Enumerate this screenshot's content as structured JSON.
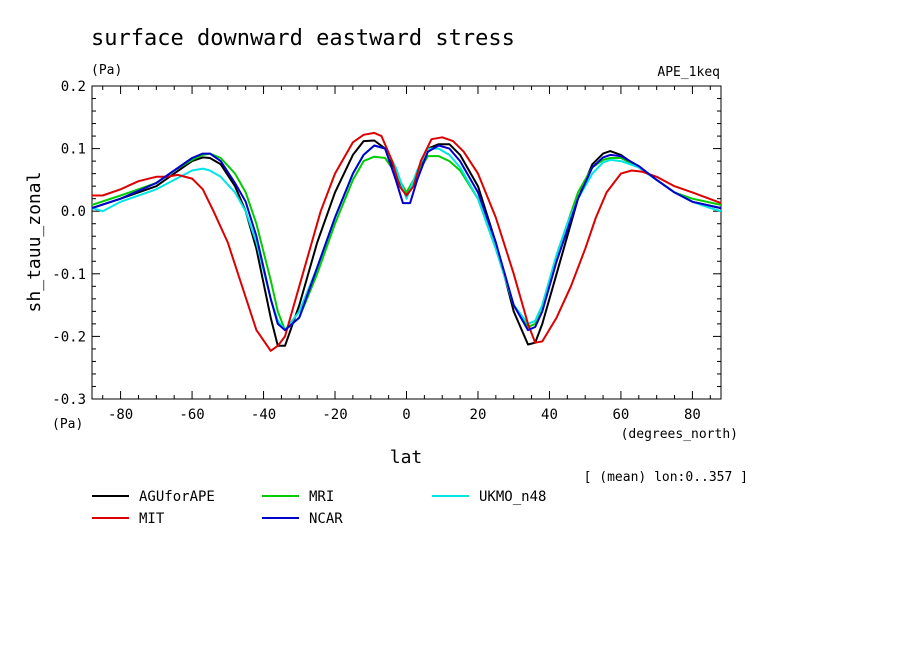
{
  "header": {
    "title": "surface downward eastward stress",
    "units": "(Pa)",
    "experiment": "APE_1keq",
    "y_units_corner": "(Pa)",
    "x_units": "(degrees_north)",
    "averaging_note": "[ (mean) lon:0..357 ]"
  },
  "chart_data": {
    "type": "line",
    "title": "surface downward eastward stress",
    "xlabel": "lat",
    "ylabel": "sh_tauu_zonal",
    "xlim": [
      -88,
      88
    ],
    "ylim": [
      -0.3,
      0.2
    ],
    "x_ticks": [
      -80,
      -60,
      -40,
      -20,
      0,
      20,
      40,
      60,
      80
    ],
    "x_tick_labels": [
      "-80",
      "-60",
      "-40",
      "-20",
      "0",
      "20",
      "40",
      "60",
      "80"
    ],
    "y_ticks": [
      -0.3,
      -0.2,
      -0.1,
      0.0,
      0.1,
      0.2
    ],
    "y_tick_labels": [
      "-0.3",
      "-0.2",
      "-0.1",
      "0.0",
      "0.1",
      "0.2"
    ],
    "grid": false,
    "legend_position": "below",
    "series": [
      {
        "name": "AGUforAPE",
        "color": "#000000",
        "x": [
          -88,
          -80,
          -70,
          -65,
          -60,
          -57,
          -55,
          -52,
          -48,
          -45,
          -42,
          -38,
          -36,
          -34,
          -30,
          -25,
          -20,
          -15,
          -12,
          -9,
          -6,
          -3,
          0,
          3,
          6,
          9,
          12,
          15,
          20,
          25,
          30,
          34,
          36,
          38,
          42,
          45,
          48,
          52,
          55,
          57,
          60,
          65,
          70,
          75,
          80,
          88
        ],
        "y": [
          0.005,
          0.02,
          0.04,
          0.06,
          0.08,
          0.086,
          0.085,
          0.075,
          0.04,
          0.0,
          -0.06,
          -0.17,
          -0.215,
          -0.215,
          -0.15,
          -0.05,
          0.03,
          0.09,
          0.112,
          0.113,
          0.1,
          0.06,
          0.025,
          0.06,
          0.1,
          0.107,
          0.107,
          0.09,
          0.04,
          -0.05,
          -0.16,
          -0.213,
          -0.21,
          -0.18,
          -0.1,
          -0.04,
          0.02,
          0.075,
          0.092,
          0.096,
          0.09,
          0.07,
          0.05,
          0.03,
          0.015,
          0.005
        ]
      },
      {
        "name": "MRI",
        "color": "#00cc00",
        "x": [
          -88,
          -80,
          -70,
          -65,
          -60,
          -57,
          -55,
          -52,
          -48,
          -45,
          -42,
          -38,
          -36,
          -34,
          -30,
          -25,
          -20,
          -15,
          -12,
          -9,
          -6,
          -3,
          0,
          3,
          6,
          9,
          12,
          15,
          20,
          25,
          30,
          34,
          36,
          38,
          42,
          45,
          48,
          52,
          55,
          57,
          60,
          65,
          70,
          75,
          80,
          88
        ],
        "y": [
          0.01,
          0.025,
          0.045,
          0.065,
          0.082,
          0.09,
          0.092,
          0.085,
          0.06,
          0.03,
          -0.02,
          -0.11,
          -0.16,
          -0.19,
          -0.17,
          -0.1,
          -0.02,
          0.05,
          0.08,
          0.087,
          0.085,
          0.06,
          0.03,
          0.06,
          0.088,
          0.088,
          0.08,
          0.065,
          0.02,
          -0.06,
          -0.15,
          -0.185,
          -0.18,
          -0.15,
          -0.07,
          -0.02,
          0.03,
          0.07,
          0.082,
          0.085,
          0.085,
          0.07,
          0.05,
          0.03,
          0.02,
          0.01
        ]
      },
      {
        "name": "UKMO_n48",
        "color": "#00e5e5",
        "x": [
          -88,
          -85,
          -80,
          -70,
          -65,
          -60,
          -57,
          -55,
          -52,
          -48,
          -45,
          -42,
          -38,
          -36,
          -34,
          -30,
          -25,
          -20,
          -15,
          -12,
          -9,
          -6,
          -3,
          0,
          3,
          6,
          9,
          12,
          15,
          20,
          25,
          30,
          34,
          36,
          38,
          42,
          45,
          48,
          52,
          55,
          57,
          60,
          65,
          70,
          75,
          80,
          85,
          88
        ],
        "y": [
          0.005,
          0.0,
          0.015,
          0.035,
          0.05,
          0.065,
          0.068,
          0.065,
          0.055,
          0.03,
          0.0,
          -0.05,
          -0.14,
          -0.175,
          -0.19,
          -0.16,
          -0.09,
          -0.01,
          0.06,
          0.09,
          0.105,
          0.1,
          0.07,
          0.02,
          0.065,
          0.1,
          0.1,
          0.09,
          0.07,
          0.02,
          -0.06,
          -0.15,
          -0.18,
          -0.175,
          -0.15,
          -0.07,
          -0.02,
          0.02,
          0.06,
          0.078,
          0.082,
          0.08,
          0.07,
          0.05,
          0.03,
          0.015,
          0.005,
          0.0
        ]
      },
      {
        "name": "MIT",
        "color": "#dd0000",
        "x": [
          -88,
          -85,
          -80,
          -75,
          -70,
          -67,
          -64,
          -60,
          -57,
          -54,
          -50,
          -46,
          -42,
          -38,
          -36,
          -34,
          -32,
          -28,
          -24,
          -20,
          -15,
          -12,
          -9,
          -7,
          -4,
          -2,
          0,
          2,
          4,
          7,
          10,
          13,
          16,
          20,
          25,
          30,
          34,
          36,
          38,
          42,
          46,
          50,
          53,
          56,
          60,
          63,
          66,
          70,
          75,
          80,
          88
        ],
        "y": [
          0.025,
          0.025,
          0.035,
          0.048,
          0.055,
          0.055,
          0.058,
          0.052,
          0.035,
          0.0,
          -0.05,
          -0.12,
          -0.19,
          -0.223,
          -0.215,
          -0.2,
          -0.16,
          -0.08,
          0.0,
          0.06,
          0.11,
          0.122,
          0.125,
          0.12,
          0.08,
          0.04,
          0.025,
          0.04,
          0.08,
          0.115,
          0.118,
          0.112,
          0.095,
          0.06,
          -0.01,
          -0.1,
          -0.18,
          -0.21,
          -0.208,
          -0.17,
          -0.12,
          -0.06,
          -0.01,
          0.03,
          0.06,
          0.065,
          0.063,
          0.055,
          0.04,
          0.03,
          0.013
        ]
      },
      {
        "name": "NCAR",
        "color": "#0000cc",
        "x": [
          -88,
          -80,
          -70,
          -65,
          -60,
          -57,
          -55,
          -52,
          -48,
          -45,
          -42,
          -38,
          -36,
          -34,
          -30,
          -25,
          -20,
          -15,
          -12,
          -9,
          -6,
          -3,
          -1,
          1,
          3,
          6,
          9,
          12,
          15,
          20,
          25,
          30,
          34,
          36,
          38,
          42,
          45,
          48,
          52,
          55,
          57,
          60,
          65,
          70,
          75,
          80,
          88
        ],
        "y": [
          0.005,
          0.02,
          0.045,
          0.065,
          0.085,
          0.092,
          0.092,
          0.08,
          0.045,
          0.015,
          -0.04,
          -0.14,
          -0.18,
          -0.19,
          -0.17,
          -0.09,
          -0.01,
          0.06,
          0.09,
          0.105,
          0.1,
          0.05,
          0.013,
          0.013,
          0.05,
          0.095,
          0.105,
          0.1,
          0.08,
          0.03,
          -0.05,
          -0.15,
          -0.19,
          -0.185,
          -0.16,
          -0.08,
          -0.03,
          0.02,
          0.07,
          0.086,
          0.09,
          0.088,
          0.072,
          0.05,
          0.03,
          0.015,
          0.005
        ]
      }
    ]
  },
  "legend_layout": [
    "AGUforAPE",
    "MIT",
    "MRI",
    "NCAR",
    "UKMO_n48"
  ]
}
